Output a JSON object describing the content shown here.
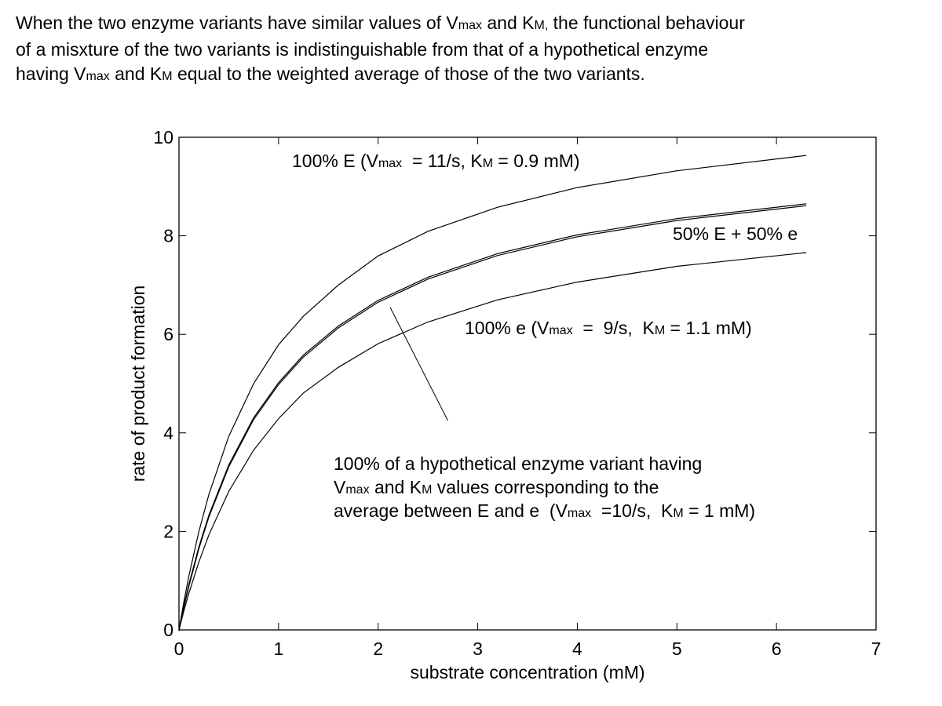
{
  "caption": {
    "line1_a": "When the two enzyme variants have similar values of V",
    "line1_sub1": "max",
    "line1_b": " and K",
    "line1_sub2": "M,",
    "line1_c": " the functional behaviour",
    "line2": "of a misxture of the two variants is indistinguishable from that of a hypothetical enzyme",
    "line3_a": "having V",
    "line3_sub1": "max",
    "line3_b": "  and K",
    "line3_sub2": "M",
    "line3_c": " equal to the weighted average of those of the two variants."
  },
  "chart_data": {
    "type": "line",
    "xlabel": "substrate concentration (mM)",
    "ylabel": "rate of product formation",
    "xlim": [
      0,
      7
    ],
    "ylim": [
      0,
      10
    ],
    "xticks": [
      0,
      1,
      2,
      3,
      4,
      5,
      6,
      7
    ],
    "yticks": [
      0,
      2,
      4,
      6,
      8,
      10
    ],
    "grid": false,
    "x": [
      0,
      0.05,
      0.1,
      0.2,
      0.3,
      0.5,
      0.75,
      1,
      1.25,
      1.6,
      2,
      2.5,
      3.2,
      4,
      5,
      6.3
    ],
    "series": [
      {
        "label_id": "E100",
        "vmax": 11,
        "km": 0.9,
        "values": [
          0,
          0.58,
          1.1,
          2.0,
          2.75,
          3.93,
          5.0,
          5.79,
          6.37,
          7.0,
          7.59,
          8.09,
          8.58,
          8.98,
          9.32,
          9.63
        ]
      },
      {
        "label_id": "mix50",
        "vmax": 10,
        "km": 1.0,
        "values": [
          0,
          0.48,
          0.91,
          1.67,
          2.31,
          3.33,
          4.29,
          5.0,
          5.56,
          6.15,
          6.67,
          7.14,
          7.62,
          8.0,
          8.33,
          8.63
        ]
      },
      {
        "label_id": "hyp",
        "vmax": 10,
        "km": 1.0,
        "values": [
          0,
          0.48,
          0.91,
          1.67,
          2.31,
          3.33,
          4.29,
          5.0,
          5.56,
          6.15,
          6.67,
          7.14,
          7.62,
          8.0,
          8.33,
          8.63
        ]
      },
      {
        "label_id": "e100",
        "vmax": 9,
        "km": 1.1,
        "values": [
          0,
          0.39,
          0.75,
          1.38,
          1.93,
          2.81,
          3.65,
          4.29,
          4.81,
          5.33,
          5.81,
          6.25,
          6.7,
          7.06,
          7.38,
          7.66
        ]
      }
    ],
    "annotations": {
      "E100": {
        "parts": [
          "100% E (V",
          "max",
          "  = 11/s, K",
          "M",
          " = 0.9 mM)"
        ]
      },
      "mix50": {
        "text": "50% E + 50% e"
      },
      "e100": {
        "parts": [
          "100% e (V",
          "max",
          "  =  9/s,  K",
          "M",
          " = 1.1 mM)"
        ]
      },
      "hyp": {
        "line1": "100% of a hypothetical enzyme variant having",
        "line2": [
          "V",
          "max",
          " and K",
          "M",
          " values corresponding to the"
        ],
        "line3": [
          "average between E and e  (V",
          "max",
          "  =10/s,  K",
          "M",
          " = 1 mM)"
        ],
        "pointer_from": [
          2.7,
          4.25
        ],
        "pointer_to": [
          2.12,
          6.55
        ]
      }
    }
  }
}
